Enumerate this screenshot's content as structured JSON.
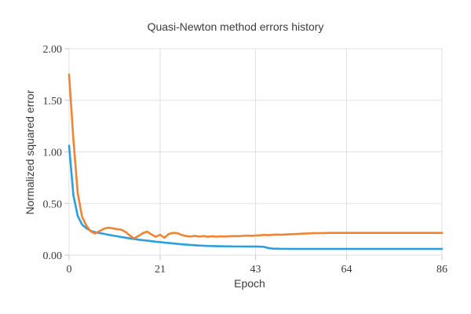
{
  "chart_data": {
    "type": "line",
    "title": "Quasi-Newton method errors history",
    "xlabel": "Epoch",
    "ylabel": "Normalized squared error",
    "xlim": [
      0,
      86
    ],
    "ylim": [
      0,
      2
    ],
    "x_ticks": [
      0,
      21,
      43,
      64,
      86
    ],
    "y_ticks": [
      "0.00",
      "0.50",
      "1.00",
      "1.50",
      "2.00"
    ],
    "grid": true,
    "legend": "none",
    "series": [
      {
        "name": "blue-error-curve",
        "color": "#2CA0DC",
        "values": [
          1.06,
          0.58,
          0.38,
          0.295,
          0.26,
          0.235,
          0.222,
          0.214,
          0.206,
          0.198,
          0.19,
          0.183,
          0.176,
          0.169,
          0.162,
          0.156,
          0.15,
          0.145,
          0.14,
          0.135,
          0.13,
          0.126,
          0.121,
          0.117,
          0.113,
          0.109,
          0.105,
          0.102,
          0.099,
          0.096,
          0.093,
          0.091,
          0.089,
          0.088,
          0.087,
          0.086,
          0.085,
          0.085,
          0.084,
          0.084,
          0.084,
          0.083,
          0.083,
          0.083,
          0.082,
          0.08,
          0.068,
          0.063,
          0.062,
          0.061,
          0.061,
          0.06,
          0.06,
          0.06,
          0.06,
          0.06,
          0.06,
          0.06,
          0.06,
          0.06,
          0.06,
          0.06,
          0.06,
          0.06,
          0.06,
          0.06,
          0.06,
          0.06,
          0.06,
          0.06,
          0.06,
          0.06,
          0.06,
          0.06,
          0.06,
          0.06,
          0.06,
          0.06,
          0.06,
          0.06,
          0.06,
          0.06,
          0.06,
          0.06,
          0.06,
          0.06,
          0.06
        ]
      },
      {
        "name": "orange-error-curve",
        "color": "#EE8434",
        "values": [
          1.75,
          1.12,
          0.6,
          0.37,
          0.285,
          0.23,
          0.21,
          0.232,
          0.255,
          0.266,
          0.26,
          0.252,
          0.247,
          0.225,
          0.19,
          0.162,
          0.185,
          0.212,
          0.228,
          0.2,
          0.178,
          0.198,
          0.168,
          0.205,
          0.215,
          0.212,
          0.195,
          0.185,
          0.18,
          0.186,
          0.18,
          0.185,
          0.178,
          0.183,
          0.179,
          0.182,
          0.18,
          0.183,
          0.185,
          0.183,
          0.186,
          0.189,
          0.187,
          0.19,
          0.192,
          0.196,
          0.193,
          0.197,
          0.199,
          0.197,
          0.2,
          0.202,
          0.204,
          0.206,
          0.208,
          0.21,
          0.212,
          0.213,
          0.214,
          0.214,
          0.215,
          0.215,
          0.215,
          0.215,
          0.215,
          0.215,
          0.215,
          0.215,
          0.215,
          0.215,
          0.215,
          0.215,
          0.215,
          0.215,
          0.215,
          0.215,
          0.215,
          0.215,
          0.215,
          0.215,
          0.215,
          0.215,
          0.215,
          0.215,
          0.215,
          0.215,
          0.215
        ]
      }
    ]
  },
  "style": {
    "background": "#ffffff",
    "grid_color": "#e2e2e2",
    "tick_mark_color": "#c8c8c8",
    "text_color": "#3b3b3b",
    "line_width": 2.6
  }
}
